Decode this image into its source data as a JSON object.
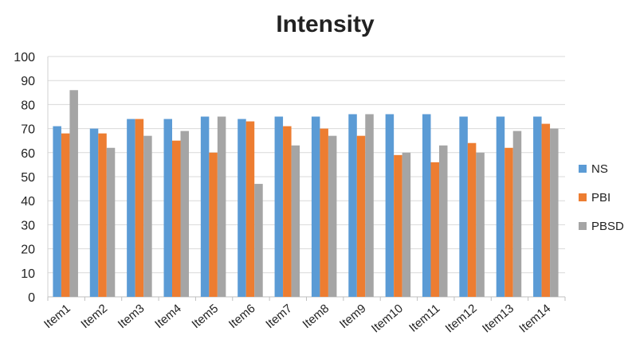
{
  "chart_data": {
    "type": "bar",
    "title": "Intensity",
    "xlabel": "",
    "ylabel": "",
    "ylim": [
      0,
      100
    ],
    "yticks": [
      0,
      10,
      20,
      30,
      40,
      50,
      60,
      70,
      80,
      90,
      100
    ],
    "grid": "horizontal",
    "legend_position": "right",
    "categories": [
      "Item1",
      "Item2",
      "Item3",
      "Item4",
      "Item5",
      "Item6",
      "Item7",
      "Item8",
      "Item9",
      "Item10",
      "Item11",
      "Item12",
      "Item13",
      "Item14"
    ],
    "series": [
      {
        "name": "NS",
        "color": "#5B9BD5",
        "values": [
          71,
          70,
          74,
          74,
          75,
          74,
          75,
          75,
          76,
          76,
          76,
          75,
          75,
          75
        ]
      },
      {
        "name": "PBI",
        "color": "#ED7D31",
        "values": [
          68,
          68,
          74,
          65,
          60,
          73,
          71,
          70,
          67,
          59,
          56,
          64,
          62,
          72
        ]
      },
      {
        "name": "PBSD",
        "color": "#A5A5A5",
        "values": [
          86,
          62,
          67,
          69,
          75,
          47,
          63,
          67,
          76,
          60,
          63,
          60,
          69,
          70
        ]
      }
    ]
  }
}
